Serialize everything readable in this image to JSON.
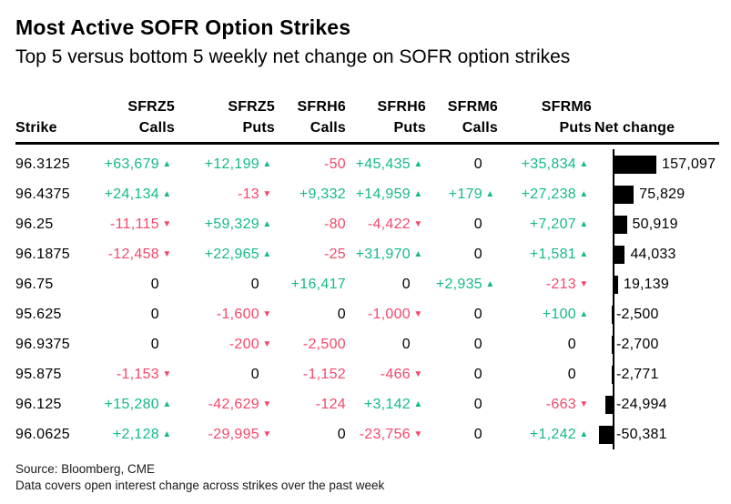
{
  "title": "Most Active SOFR Option Strikes",
  "subtitle": "Top 5 versus bottom 5 weekly net change on SOFR option strikes",
  "source_line1": "Source: Bloomberg, CME",
  "source_line2": "Data covers open interest change across strikes over the past week",
  "colors": {
    "positive_green": "#15b98b",
    "negative_red": "#f5486a",
    "bar_black": "#000000"
  },
  "icons": {
    "up_arrow": "▲",
    "down_arrow": "▼"
  },
  "table": {
    "header": {
      "strike_label": "Strike",
      "net_change_label": "Net change",
      "groups": [
        {
          "contract": "SFRZ5",
          "type": "Calls",
          "arrows": true
        },
        {
          "contract": "SFRZ5",
          "type": "Puts",
          "arrows": true
        },
        {
          "contract": "SFRH6",
          "type": "Calls",
          "arrows": false
        },
        {
          "contract": "SFRH6",
          "type": "Puts",
          "arrows": true
        },
        {
          "contract": "SFRM6",
          "type": "Calls",
          "arrows": true
        },
        {
          "contract": "SFRM6",
          "type": "Puts",
          "arrows": true
        }
      ]
    },
    "rows": [
      {
        "strike": "96.3125",
        "values": [
          {
            "text": "+63,679",
            "dir": "up"
          },
          {
            "text": "+12,199",
            "dir": "up"
          },
          {
            "text": "-50",
            "dir": null
          },
          {
            "text": "+45,435",
            "dir": "up"
          },
          {
            "text": "0",
            "dir": null
          },
          {
            "text": "+35,834",
            "dir": "up"
          }
        ],
        "net": {
          "value": 157097,
          "label": "157,097"
        }
      },
      {
        "strike": "96.4375",
        "values": [
          {
            "text": "+24,134",
            "dir": "up"
          },
          {
            "text": "-13",
            "dir": "down"
          },
          {
            "text": "+9,332",
            "dir": null
          },
          {
            "text": "+14,959",
            "dir": "up"
          },
          {
            "text": "+179",
            "dir": "up"
          },
          {
            "text": "+27,238",
            "dir": "up"
          }
        ],
        "net": {
          "value": 75829,
          "label": "75,829"
        }
      },
      {
        "strike": "96.25",
        "values": [
          {
            "text": "-11,115",
            "dir": "down"
          },
          {
            "text": "+59,329",
            "dir": "up"
          },
          {
            "text": "-80",
            "dir": null
          },
          {
            "text": "-4,422",
            "dir": "down"
          },
          {
            "text": "0",
            "dir": null
          },
          {
            "text": "+7,207",
            "dir": "up"
          }
        ],
        "net": {
          "value": 50919,
          "label": "50,919"
        }
      },
      {
        "strike": "96.1875",
        "values": [
          {
            "text": "-12,458",
            "dir": "down"
          },
          {
            "text": "+22,965",
            "dir": "up"
          },
          {
            "text": "-25",
            "dir": null
          },
          {
            "text": "+31,970",
            "dir": "up"
          },
          {
            "text": "0",
            "dir": null
          },
          {
            "text": "+1,581",
            "dir": "up"
          }
        ],
        "net": {
          "value": 44033,
          "label": "44,033"
        }
      },
      {
        "strike": "96.75",
        "values": [
          {
            "text": "0",
            "dir": null
          },
          {
            "text": "0",
            "dir": null
          },
          {
            "text": "+16,417",
            "dir": null
          },
          {
            "text": "0",
            "dir": null
          },
          {
            "text": "+2,935",
            "dir": "up"
          },
          {
            "text": "-213",
            "dir": "down"
          }
        ],
        "net": {
          "value": 19139,
          "label": "19,139"
        }
      },
      {
        "strike": "95.625",
        "values": [
          {
            "text": "0",
            "dir": null
          },
          {
            "text": "-1,600",
            "dir": "down"
          },
          {
            "text": "0",
            "dir": null
          },
          {
            "text": "-1,000",
            "dir": "down"
          },
          {
            "text": "0",
            "dir": null
          },
          {
            "text": "+100",
            "dir": "up"
          }
        ],
        "net": {
          "value": -2500,
          "label": "-2,500"
        }
      },
      {
        "strike": "96.9375",
        "values": [
          {
            "text": "0",
            "dir": null
          },
          {
            "text": "-200",
            "dir": "down"
          },
          {
            "text": "-2,500",
            "dir": null
          },
          {
            "text": "0",
            "dir": null
          },
          {
            "text": "0",
            "dir": null
          },
          {
            "text": "0",
            "dir": null
          }
        ],
        "net": {
          "value": -2700,
          "label": "-2,700"
        }
      },
      {
        "strike": "95.875",
        "values": [
          {
            "text": "-1,153",
            "dir": "down"
          },
          {
            "text": "0",
            "dir": null
          },
          {
            "text": "-1,152",
            "dir": null
          },
          {
            "text": "-466",
            "dir": "down"
          },
          {
            "text": "0",
            "dir": null
          },
          {
            "text": "0",
            "dir": null
          }
        ],
        "net": {
          "value": -2771,
          "label": "-2,771"
        }
      },
      {
        "strike": "96.125",
        "values": [
          {
            "text": "+15,280",
            "dir": "up"
          },
          {
            "text": "-42,629",
            "dir": "down"
          },
          {
            "text": "-124",
            "dir": null
          },
          {
            "text": "+3,142",
            "dir": "up"
          },
          {
            "text": "0",
            "dir": null
          },
          {
            "text": "-663",
            "dir": "down"
          }
        ],
        "net": {
          "value": -24994,
          "label": "-24,994"
        }
      },
      {
        "strike": "96.0625",
        "values": [
          {
            "text": "+2,128",
            "dir": "up"
          },
          {
            "text": "-29,995",
            "dir": "down"
          },
          {
            "text": "0",
            "dir": null
          },
          {
            "text": "-23,756",
            "dir": "down"
          },
          {
            "text": "0",
            "dir": null
          },
          {
            "text": "+1,242",
            "dir": "up"
          }
        ],
        "net": {
          "value": -50381,
          "label": "-50,381"
        }
      }
    ]
  },
  "chart_data": {
    "type": "table",
    "title": "Most Active SOFR Option Strikes",
    "subtitle": "Top 5 versus bottom 5 weekly net change on SOFR option strikes",
    "columns": [
      "Strike",
      "SFRZ5 Calls",
      "SFRZ5 Puts",
      "SFRH6 Calls",
      "SFRH6 Puts",
      "SFRM6 Calls",
      "SFRM6 Puts",
      "Net change"
    ],
    "rows": [
      [
        96.3125,
        63679,
        12199,
        -50,
        45435,
        0,
        35834,
        157097
      ],
      [
        96.4375,
        24134,
        -13,
        9332,
        14959,
        179,
        27238,
        75829
      ],
      [
        96.25,
        -11115,
        59329,
        -80,
        -4422,
        0,
        7207,
        50919
      ],
      [
        96.1875,
        -12458,
        22965,
        -25,
        31970,
        0,
        1581,
        44033
      ],
      [
        96.75,
        0,
        0,
        16417,
        0,
        2935,
        -213,
        19139
      ],
      [
        95.625,
        0,
        -1600,
        0,
        -1000,
        0,
        100,
        -2500
      ],
      [
        96.9375,
        0,
        -200,
        -2500,
        0,
        0,
        0,
        -2700
      ],
      [
        95.875,
        -1153,
        0,
        -1152,
        -466,
        0,
        0,
        -2771
      ],
      [
        96.125,
        15280,
        -42629,
        -124,
        3142,
        0,
        -663,
        -24994
      ],
      [
        96.0625,
        2128,
        -29995,
        0,
        -23756,
        0,
        1242,
        -50381
      ]
    ],
    "bar_column": "Net change",
    "bar_style": "horizontal black bars from zero baseline; positive bars extend right, negative bars extend left",
    "bar_value_range": [
      -50381,
      157097
    ],
    "value_coloring": "positive values green with up triangle, negative values red/pink with down triangle, zeros black; SFRH6 Calls column shows no triangles",
    "source": "Source: Bloomberg, CME",
    "note": "Data covers open interest change across strikes over the past week"
  }
}
